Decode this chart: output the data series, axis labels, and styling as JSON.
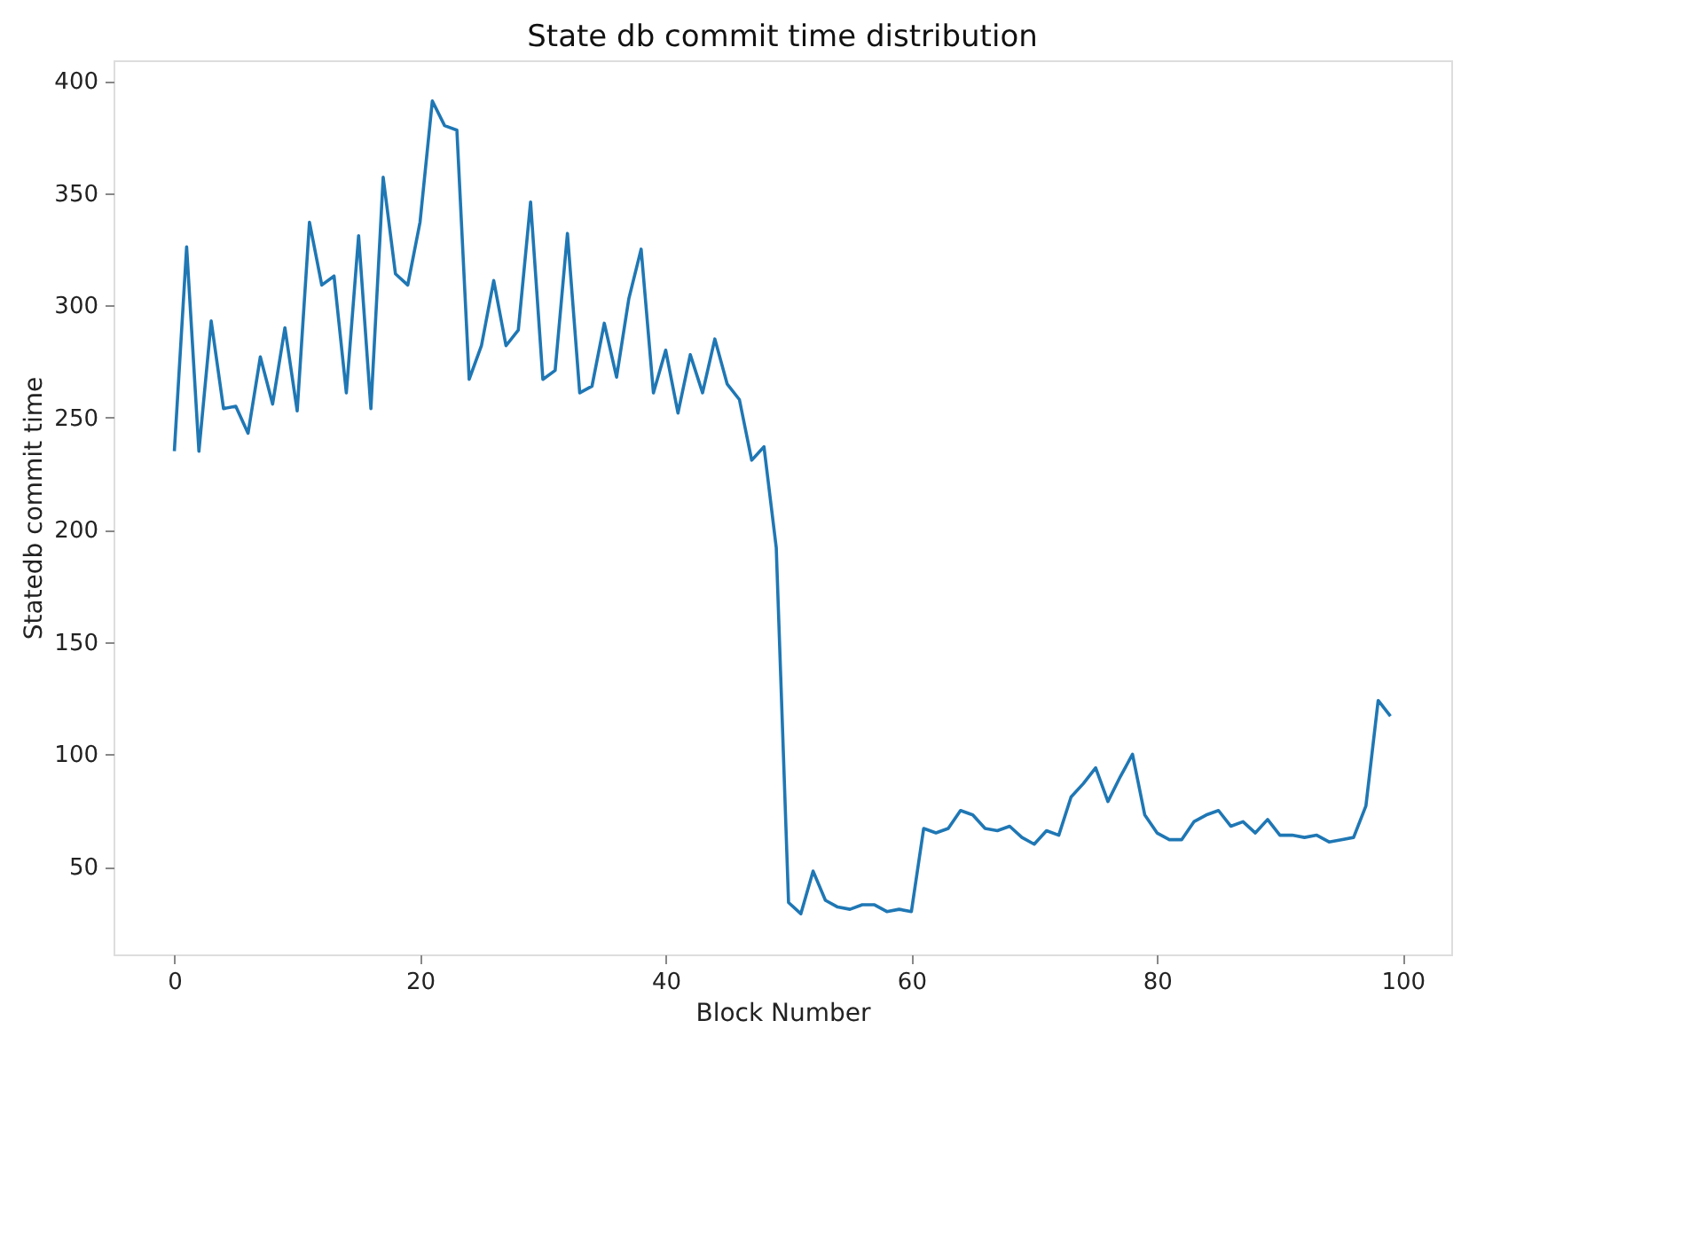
{
  "chart_data": {
    "type": "line",
    "title": "State db commit time distribution",
    "xlabel": "Block Number",
    "ylabel": "Statedb commit time",
    "x": [
      0,
      1,
      2,
      3,
      4,
      5,
      6,
      7,
      8,
      9,
      10,
      11,
      12,
      13,
      14,
      15,
      16,
      17,
      18,
      19,
      20,
      21,
      22,
      23,
      24,
      25,
      26,
      27,
      28,
      29,
      30,
      31,
      32,
      33,
      34,
      35,
      36,
      37,
      38,
      39,
      40,
      41,
      42,
      43,
      44,
      45,
      46,
      47,
      48,
      49,
      50,
      51,
      52,
      53,
      54,
      55,
      56,
      57,
      58,
      59,
      60,
      61,
      62,
      63,
      64,
      65,
      66,
      67,
      68,
      69,
      70,
      71,
      72,
      73,
      74,
      75,
      76,
      77,
      78,
      79,
      80,
      81,
      82,
      83,
      84,
      85,
      86,
      87,
      88,
      89,
      90,
      91,
      92,
      93,
      94,
      95,
      96,
      97,
      98,
      99
    ],
    "series": [
      {
        "color": "#1f77b4",
        "values": [
          235,
          326,
          235,
          293,
          254,
          255,
          243,
          277,
          256,
          290,
          253,
          337,
          309,
          313,
          261,
          331,
          254,
          357,
          314,
          309,
          337,
          391,
          380,
          378,
          267,
          282,
          311,
          282,
          289,
          346,
          267,
          271,
          332,
          261,
          264,
          292,
          268,
          303,
          325,
          261,
          280,
          252,
          278,
          261,
          285,
          265,
          258,
          231,
          237,
          192,
          34,
          29,
          48,
          35,
          32,
          31,
          33,
          33,
          30,
          31,
          30,
          67,
          65,
          67,
          75,
          73,
          67,
          66,
          68,
          63,
          60,
          66,
          64,
          81,
          87,
          94,
          79,
          90,
          100,
          73,
          65,
          62,
          62,
          70,
          73,
          75,
          68,
          70,
          65,
          71,
          64,
          64,
          63,
          64,
          61,
          62,
          63,
          77,
          124,
          117
        ]
      }
    ],
    "xlim": [
      -4.95,
      103.95
    ],
    "ylim": [
      10.9,
      409.1
    ],
    "xticks": [
      0,
      20,
      40,
      60,
      80,
      100
    ],
    "yticks": [
      50,
      100,
      150,
      200,
      250,
      300,
      350,
      400
    ],
    "grid": false
  }
}
